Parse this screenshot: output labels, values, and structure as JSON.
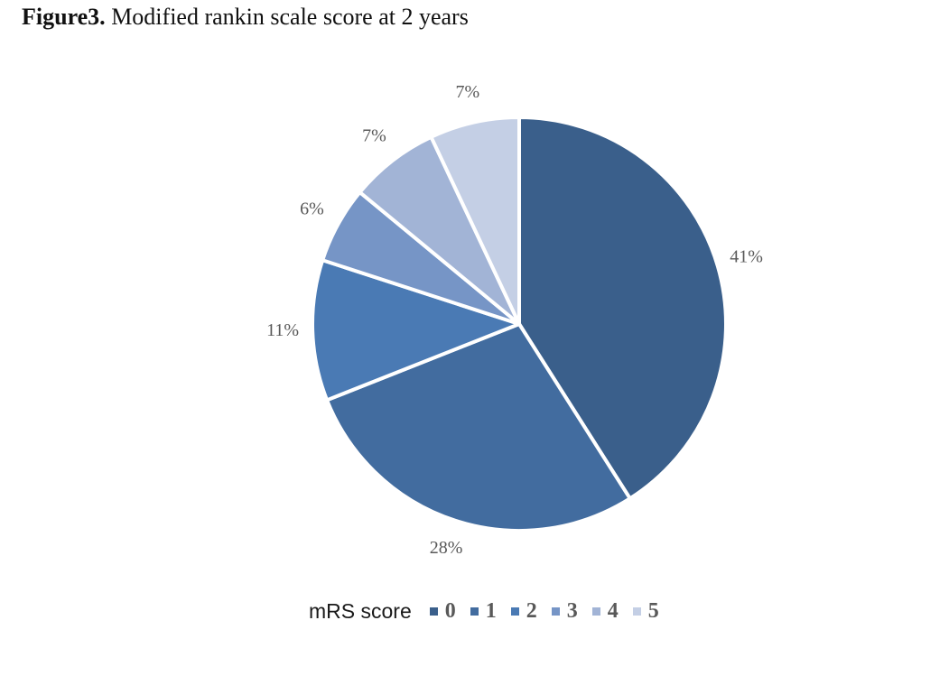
{
  "figure": {
    "label": "Figure3.",
    "caption": "Modified rankin scale score at 2 years"
  },
  "chart_data": {
    "type": "pie",
    "title": "",
    "legend_title": "mRS score",
    "legend_position": "bottom",
    "categories": [
      "0",
      "1",
      "2",
      "3",
      "4",
      "5"
    ],
    "values": [
      41,
      28,
      11,
      6,
      7,
      7
    ],
    "data_labels": [
      "41%",
      "28%",
      "11%",
      "6%",
      "7%",
      "7%"
    ],
    "colors": [
      "#3a5f8b",
      "#426c9f",
      "#4a7ab4",
      "#7695c6",
      "#a2b4d6",
      "#c4cfe5"
    ]
  }
}
